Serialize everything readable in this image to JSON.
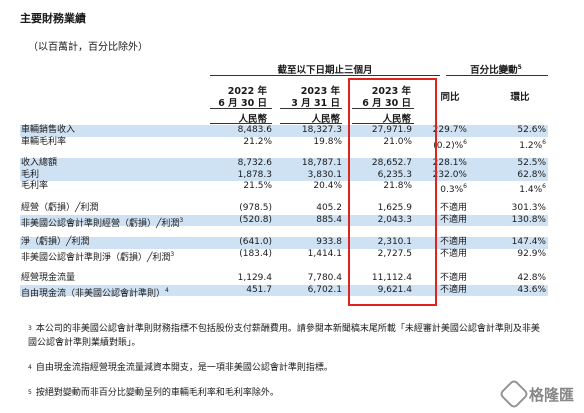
{
  "title": "主要財務業績",
  "unit_note": "（以百萬計，百分比除外）",
  "headers": {
    "period_group": "截至以下日期止三個月",
    "change_group": "百分比變動",
    "change_sup": "5",
    "col1_year": "2022 年",
    "col1_date": "6 月 30 日",
    "col2_year": "2023 年",
    "col2_date": "3 月 31 日",
    "col3_year": "2023 年",
    "col3_date": "6 月 30 日",
    "yoy": "同比",
    "qoq": "環比",
    "currency1": "人民幣",
    "currency2": "人民幣",
    "currency3": "人民幣"
  },
  "rows": [
    {
      "label": "車輛銷售收入",
      "c1": "8,483.6",
      "c2": "18,327.3",
      "c3": "27,971.9",
      "yoy": "229.7%",
      "qoq": "52.6%",
      "band": true
    },
    {
      "label": "車輛毛利率",
      "c1": "21.2%",
      "c2": "19.8%",
      "c3": "21.0%",
      "yoy": "(0.2)%",
      "yoy_sup": "6",
      "qoq": "1.2%",
      "qoq_sup": "6",
      "band": false
    },
    {
      "label": "收入總額",
      "c1": "8,732.6",
      "c2": "18,787.1",
      "c3": "28,652.7",
      "yoy": "228.1%",
      "qoq": "52.5%",
      "band": true
    },
    {
      "label": "毛利",
      "c1": "1,878.3",
      "c2": "3,830.1",
      "c3": "6,235.3",
      "yoy": "232.0%",
      "qoq": "62.8%",
      "band": true
    },
    {
      "label": "毛利率",
      "c1": "21.5%",
      "c2": "20.4%",
      "c3": "21.8%",
      "yoy": "0.3%",
      "yoy_sup": "6",
      "qoq": "1.4%",
      "qoq_sup": "6",
      "band": false
    },
    {
      "label": "經營（虧損）╱利潤",
      "c1": "(978.5)",
      "c2": "405.2",
      "c3": "1,625.9",
      "yoy": "不適用",
      "qoq": "301.3%",
      "band": false
    },
    {
      "label": "非美國公認會計準則經營（虧損）╱利潤",
      "label_sup": "3",
      "c1": "(520.8)",
      "c2": "885.4",
      "c3": "2,043.3",
      "yoy": "不適用",
      "qoq": "130.8%",
      "band": true
    },
    {
      "label": "淨（虧損）╱利潤",
      "c1": "(641.0)",
      "c2": "933.8",
      "c3": "2,310.1",
      "yoy": "不適用",
      "qoq": "147.4%",
      "band": true
    },
    {
      "label": "非美國公認會計準則淨（虧損）╱利潤",
      "label_sup": "3",
      "c1": "(183.4)",
      "c2": "1,414.1",
      "c3": "2,727.5",
      "yoy": "不適用",
      "qoq": "92.9%",
      "band": false
    },
    {
      "label": "經營現金流量",
      "c1": "1,129.4",
      "c2": "7,780.4",
      "c3": "11,112.4",
      "yoy": "不適用",
      "qoq": "42.8%",
      "band": false
    },
    {
      "label": "自由現金流（非美國公認會計準則）",
      "label_sup": "4",
      "c1": "451.7",
      "c2": "6,702.1",
      "c3": "9,621.4",
      "yoy": "不適用",
      "qoq": "43.6%",
      "band": true
    }
  ],
  "footnotes": [
    {
      "num": "3",
      "text": "本公司的非美國公認會計準則財務指標不包括股份支付薪酬費用。請參閱本新聞稿末尾所載「未經審計美國公認會計準則及非美國公認會計準則業績對賬」。"
    },
    {
      "num": "4",
      "text": "自由現金流指經營現金流量減資本開支，是一項非美國公認會計準則指標。"
    },
    {
      "num": "5",
      "text": "按絕對變動而非百分比變動呈列的車輛毛利率和毛利率除外。"
    }
  ],
  "watermark": "格隆匯",
  "colors": {
    "band": "#cfe2f3",
    "highlight": "#e0241b"
  }
}
